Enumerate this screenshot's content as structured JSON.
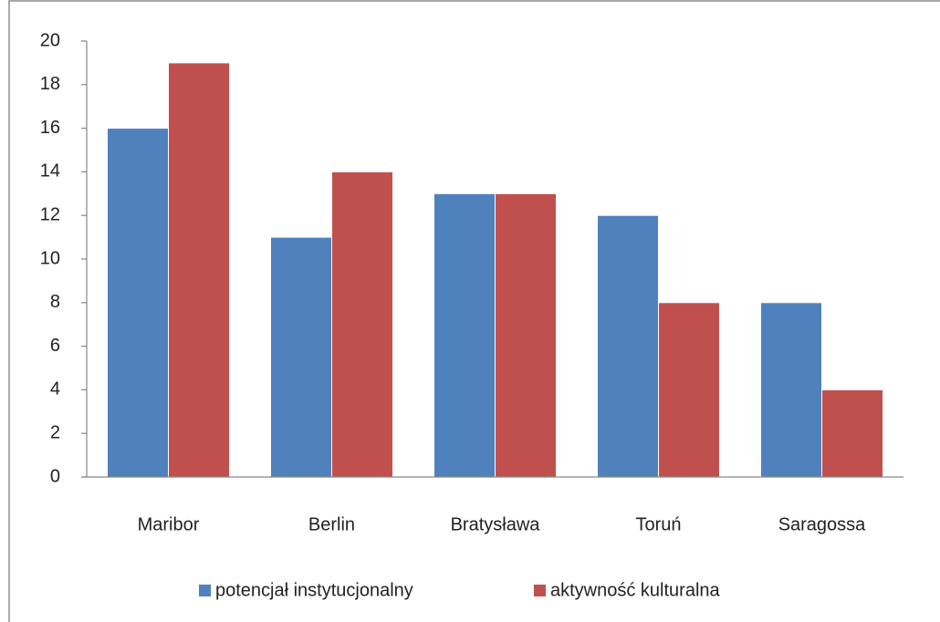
{
  "chart_data": {
    "type": "bar",
    "categories": [
      "Maribor",
      "Berlin",
      "Bratysława",
      "Toruń",
      "Saragossa"
    ],
    "series": [
      {
        "name": "potencjał instytucjonalny",
        "color": "#4f81bd",
        "values": [
          16,
          11,
          13,
          12,
          8
        ]
      },
      {
        "name": "aktywność kulturalna",
        "color": "#c0504d",
        "values": [
          19,
          14,
          13,
          8,
          4
        ]
      }
    ],
    "ylim": [
      0,
      20
    ],
    "yticks": [
      0,
      2,
      4,
      6,
      8,
      10,
      12,
      14,
      16,
      18,
      20
    ],
    "grid": false,
    "legend": "bottom"
  }
}
